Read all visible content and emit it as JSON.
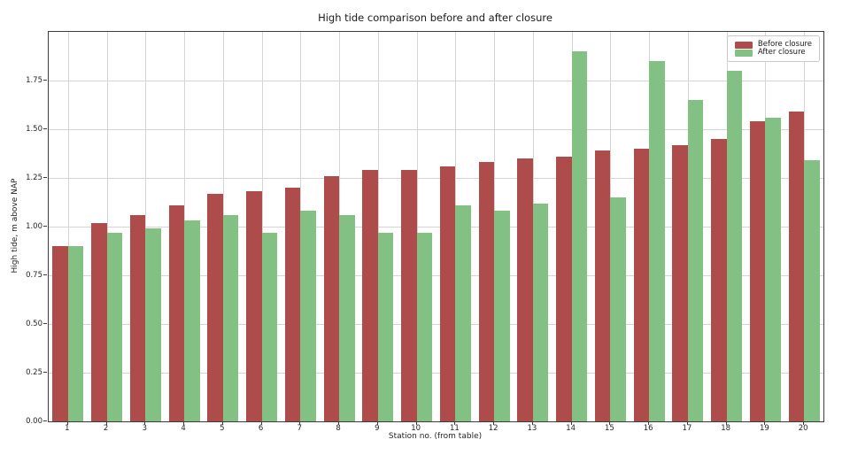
{
  "title": "High tide comparison before and after closure",
  "chart_data": {
    "type": "bar",
    "title": "High tide comparison before and after closure",
    "xlabel": "Station no. (from table)",
    "ylabel": "High tide, m above NAP",
    "categories": [
      "1",
      "2",
      "3",
      "4",
      "5",
      "6",
      "7",
      "8",
      "9",
      "10",
      "11",
      "12",
      "13",
      "14",
      "15",
      "16",
      "17",
      "18",
      "19",
      "20"
    ],
    "series": [
      {
        "name": "Before closure",
        "color": "#ae4c4c",
        "values": [
          0.9,
          1.02,
          1.06,
          1.11,
          1.17,
          1.18,
          1.2,
          1.26,
          1.29,
          1.29,
          1.31,
          1.33,
          1.35,
          1.36,
          1.39,
          1.4,
          1.42,
          1.45,
          1.54,
          1.59
        ]
      },
      {
        "name": "After closure",
        "color": "#83c083",
        "values": [
          0.9,
          0.97,
          0.99,
          1.03,
          1.06,
          0.97,
          1.08,
          1.06,
          0.97,
          0.97,
          1.11,
          1.08,
          1.12,
          1.9,
          1.15,
          1.85,
          1.65,
          1.8,
          1.56,
          1.34
        ]
      }
    ],
    "ylim": [
      0,
      2.0
    ],
    "yticks": [
      0.0,
      0.25,
      0.5,
      0.75,
      1.0,
      1.25,
      1.5,
      1.75
    ],
    "grid": true,
    "legend_position": "upper right"
  }
}
